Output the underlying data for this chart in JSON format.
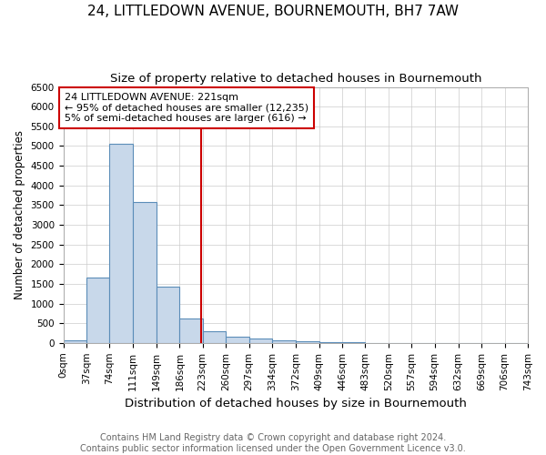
{
  "title": "24, LITTLEDOWN AVENUE, BOURNEMOUTH, BH7 7AW",
  "subtitle": "Size of property relative to detached houses in Bournemouth",
  "xlabel": "Distribution of detached houses by size in Bournemouth",
  "ylabel": "Number of detached properties",
  "footer_line1": "Contains HM Land Registry data © Crown copyright and database right 2024.",
  "footer_line2": "Contains public sector information licensed under the Open Government Licence v3.0.",
  "bin_edges": [
    0,
    37,
    74,
    111,
    149,
    186,
    223,
    260,
    297,
    334,
    372,
    409,
    446,
    483,
    520,
    557,
    594,
    632,
    669,
    706,
    743
  ],
  "bar_heights": [
    75,
    1650,
    5060,
    3580,
    1420,
    620,
    300,
    155,
    120,
    75,
    35,
    20,
    10,
    0,
    0,
    0,
    0,
    0,
    0,
    0
  ],
  "bar_color": "#c8d8ea",
  "bar_edge_color": "#5b8db8",
  "vline_x": 221,
  "vline_color": "#cc0000",
  "annotation_text": "24 LITTLEDOWN AVENUE: 221sqm\n← 95% of detached houses are smaller (12,235)\n5% of semi-detached houses are larger (616) →",
  "annotation_box_color": "white",
  "annotation_box_edge": "#cc0000",
  "ylim": [
    0,
    6500
  ],
  "yticks": [
    0,
    500,
    1000,
    1500,
    2000,
    2500,
    3000,
    3500,
    4000,
    4500,
    5000,
    5500,
    6000,
    6500
  ],
  "tick_label_fontsize": 7.5,
  "title_fontsize": 11,
  "subtitle_fontsize": 9.5,
  "xlabel_fontsize": 9.5,
  "ylabel_fontsize": 8.5,
  "annotation_fontsize": 8,
  "footer_fontsize": 7,
  "bg_color": "#ffffff",
  "plot_bg_color": "#ffffff",
  "grid_color": "#cccccc"
}
